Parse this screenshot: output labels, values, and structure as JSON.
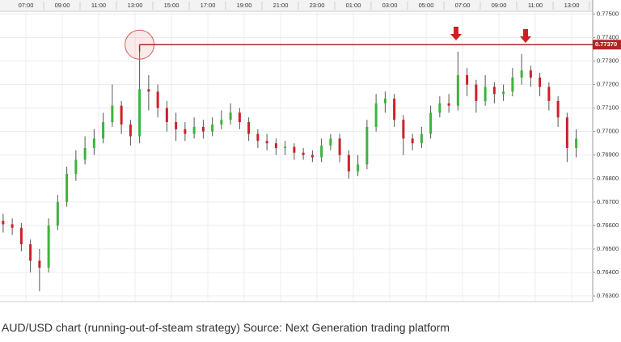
{
  "chart_data": {
    "type": "candlestick",
    "caption": "AUD/USD chart (running-out-of-steam strategy) Source: Next Generation trading platform",
    "x": [
      -0.25,
      0.25,
      0.75,
      1.25,
      1.75,
      2.25,
      2.75,
      3.25,
      3.75,
      4.25,
      4.75,
      5.25,
      5.75,
      6.25,
      6.75,
      7.25,
      7.75,
      8.25,
      8.75,
      9.25,
      9.75,
      10.25,
      10.75,
      11.25,
      11.75,
      12.25,
      12.75,
      13.25,
      13.75,
      14.25,
      14.75,
      15.25,
      15.75,
      16.25,
      16.75,
      17.25,
      17.75,
      18.25,
      18.75,
      19.25,
      19.75,
      20.25,
      20.75,
      21.25,
      21.75,
      22.25,
      22.75,
      23.25,
      23.75,
      24.25,
      24.75,
      25.25,
      25.75,
      26.25,
      26.75,
      27.25,
      27.75,
      28.25,
      28.75,
      29.25,
      29.75,
      30.25,
      30.75,
      31.25
    ],
    "open": [
      0.7662,
      0.76605,
      0.7659,
      0.7652,
      0.7645,
      0.7642,
      0.766,
      0.767,
      0.7682,
      0.7688,
      0.7693,
      0.7697,
      0.7704,
      0.7711,
      0.7703,
      0.7698,
      0.7718,
      0.7717,
      0.771,
      0.7704,
      0.7701,
      0.7699,
      0.7702,
      0.77,
      0.7703,
      0.7705,
      0.7708,
      0.7704,
      0.7699,
      0.7696,
      0.7695,
      0.7693,
      0.76935,
      0.7691,
      0.769,
      0.7689,
      0.7694,
      0.7697,
      0.769,
      0.7683,
      0.7686,
      0.7702,
      0.7712,
      0.7714,
      0.7705,
      0.7697,
      0.7695,
      0.7699,
      0.7708,
      0.7712,
      0.7711,
      0.7724,
      0.772,
      0.7713,
      0.7719,
      0.7716,
      0.7717,
      0.7723,
      0.7726,
      0.7723,
      0.7719,
      0.7713,
      0.7706,
      0.7693
    ],
    "high": [
      0.7665,
      0.7663,
      0.7661,
      0.7654,
      0.765,
      0.7663,
      0.7673,
      0.7685,
      0.7692,
      0.7698,
      0.7701,
      0.7708,
      0.772,
      0.7713,
      0.7705,
      0.7734,
      0.7724,
      0.772,
      0.7713,
      0.7708,
      0.7704,
      0.7706,
      0.7705,
      0.7706,
      0.7709,
      0.7712,
      0.771,
      0.7706,
      0.7701,
      0.7699,
      0.7697,
      0.7696,
      0.7695,
      0.7693,
      0.7692,
      0.7697,
      0.7699,
      0.7699,
      0.7692,
      0.769,
      0.7705,
      0.7716,
      0.7717,
      0.7716,
      0.7707,
      0.7699,
      0.7702,
      0.7711,
      0.7715,
      0.7716,
      0.7734,
      0.7727,
      0.7722,
      0.7724,
      0.7721,
      0.772,
      0.7727,
      0.7733,
      0.7728,
      0.7725,
      0.7721,
      0.7715,
      0.7708,
      0.7701
    ],
    "low": [
      0.7657,
      0.7656,
      0.7649,
      0.764,
      0.7632,
      0.764,
      0.7658,
      0.7668,
      0.7679,
      0.7686,
      0.769,
      0.7695,
      0.7702,
      0.7699,
      0.7694,
      0.7695,
      0.7709,
      0.7706,
      0.77,
      0.7696,
      0.7696,
      0.7697,
      0.7697,
      0.7698,
      0.7701,
      0.7703,
      0.7701,
      0.7696,
      0.7693,
      0.7692,
      0.769,
      0.769,
      0.7688,
      0.7688,
      0.7687,
      0.7687,
      0.7692,
      0.7687,
      0.768,
      0.7681,
      0.7684,
      0.77,
      0.7708,
      0.7702,
      0.769,
      0.7692,
      0.7693,
      0.7697,
      0.7706,
      0.7708,
      0.7709,
      0.7715,
      0.7708,
      0.7711,
      0.7712,
      0.7713,
      0.7715,
      0.772,
      0.7719,
      0.7715,
      0.7709,
      0.7702,
      0.7687,
      0.7689
    ],
    "close": [
      0.76605,
      0.7659,
      0.7652,
      0.7645,
      0.7642,
      0.766,
      0.767,
      0.7682,
      0.7688,
      0.7693,
      0.7697,
      0.7704,
      0.7711,
      0.7703,
      0.7698,
      0.7718,
      0.7717,
      0.771,
      0.7704,
      0.7701,
      0.7699,
      0.7702,
      0.77,
      0.7703,
      0.7705,
      0.7708,
      0.7704,
      0.7699,
      0.7696,
      0.7695,
      0.7693,
      0.76935,
      0.7691,
      0.769,
      0.7689,
      0.7694,
      0.7697,
      0.769,
      0.7683,
      0.7686,
      0.7702,
      0.7712,
      0.7714,
      0.7705,
      0.7697,
      0.7695,
      0.7699,
      0.7708,
      0.7712,
      0.7711,
      0.7724,
      0.772,
      0.7713,
      0.7719,
      0.7716,
      0.7717,
      0.7723,
      0.7726,
      0.7723,
      0.7719,
      0.7713,
      0.7706,
      0.7693,
      0.7697
    ],
    "up_color": "#3cb43c",
    "down_color": "#cc2229",
    "level": {
      "value": 0.7737,
      "label": "0.77370"
    },
    "level_color": "#b32424",
    "xlim": [
      -0.422,
      32.156
    ],
    "xticks": [
      {
        "value": 1,
        "label": "07:00"
      },
      {
        "value": 3,
        "label": "09:00"
      },
      {
        "value": 5,
        "label": "11:00"
      },
      {
        "value": 7,
        "label": "13:00"
      },
      {
        "value": 9,
        "label": "15:00"
      },
      {
        "value": 11,
        "label": "17:00"
      },
      {
        "value": 13,
        "label": "19:00"
      },
      {
        "value": 15,
        "label": "21:00"
      },
      {
        "value": 17,
        "label": "23:00"
      },
      {
        "value": 19,
        "label": "01:00"
      },
      {
        "value": 21,
        "label": "03:00"
      },
      {
        "value": 23,
        "label": "05:00"
      },
      {
        "value": 25,
        "label": "07:00"
      },
      {
        "value": 27,
        "label": "09:00"
      },
      {
        "value": 29,
        "label": "11:00"
      },
      {
        "value": 31,
        "label": "13:00"
      }
    ],
    "ylim": [
      0.76276,
      0.7756
    ],
    "yticks": [
      {
        "value": 0.763,
        "label": "0.76300"
      },
      {
        "value": 0.764,
        "label": "0.76400"
      },
      {
        "value": 0.765,
        "label": "0.76500"
      },
      {
        "value": 0.766,
        "label": "0.76600"
      },
      {
        "value": 0.767,
        "label": "0.76700"
      },
      {
        "value": 0.768,
        "label": "0.76800"
      },
      {
        "value": 0.769,
        "label": "0.76900"
      },
      {
        "value": 0.77,
        "label": "0.77000"
      },
      {
        "value": 0.771,
        "label": "0.77100"
      },
      {
        "value": 0.772,
        "label": "0.77200"
      },
      {
        "value": 0.773,
        "label": "0.77300"
      },
      {
        "value": 0.774,
        "label": "0.77400"
      },
      {
        "value": 0.775,
        "label": "0.77500"
      }
    ],
    "grid": true
  }
}
